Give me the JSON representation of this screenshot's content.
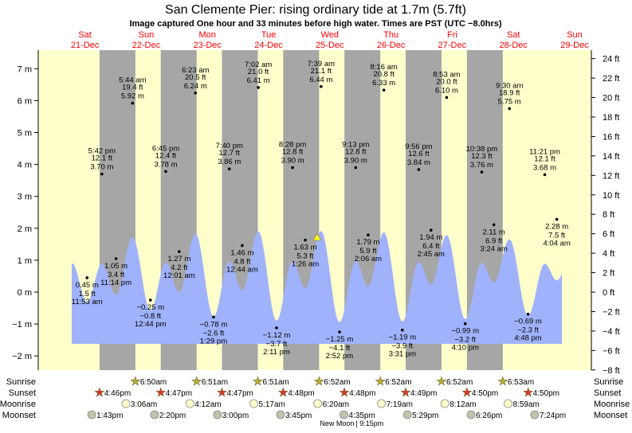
{
  "title": "San Clemente Pier: rising  ordinary tide at 1.7m (5.7ft)",
  "subtitle": "Image captured One hour and 33 minutes before high water. Times are PST (UTC −8.0hrs)",
  "colors": {
    "day_bg": "#ffffcc",
    "night_bg": "#a6a6a6",
    "water": "#9fb2fb",
    "day_label": "#ff0000",
    "sunrise": "#b5b03a",
    "sunset": "#d63a2a",
    "moonrise": "#ffffcc",
    "moonset": "#c3c2aa",
    "marker": "#ffff33"
  },
  "chart_data": {
    "type": "area",
    "title": "San Clemente Pier: rising  ordinary tide at 1.7m (5.7ft)",
    "ylabel_left": "m",
    "ylabel_right": "ft",
    "ylim_m": [
      -2,
      7
    ],
    "ylim_ft": [
      -8,
      24
    ],
    "yticks_m": [
      "7 m",
      "6 m",
      "5 m",
      "4 m",
      "3 m",
      "2 m",
      "1 m",
      "0 m",
      "−1 m",
      "−2 m"
    ],
    "yticks_m_values": [
      7,
      6,
      5,
      4,
      3,
      2,
      1,
      0,
      -1,
      -2
    ],
    "yticks_ft": [
      "24 ft",
      "22 ft",
      "20 ft",
      "18 ft",
      "16 ft",
      "14 ft",
      "12 ft",
      "10 ft",
      "8 ft",
      "6 ft",
      "4 ft",
      "2 ft",
      "0 ft",
      "−2 ft",
      "−4 ft",
      "−6 ft",
      "−8 ft"
    ],
    "yticks_ft_values": [
      24,
      22,
      20,
      18,
      16,
      14,
      12,
      10,
      8,
      6,
      4,
      2,
      0,
      -2,
      -4,
      -6,
      -8
    ],
    "days": [
      {
        "dow": "Sat",
        "date": "21-Dec"
      },
      {
        "dow": "Sun",
        "date": "22-Dec"
      },
      {
        "dow": "Mon",
        "date": "23-Dec"
      },
      {
        "dow": "Tue",
        "date": "24-Dec"
      },
      {
        "dow": "Wed",
        "date": "25-Dec"
      },
      {
        "dow": "Thu",
        "date": "26-Dec"
      },
      {
        "dow": "Fri",
        "date": "27-Dec"
      },
      {
        "dow": "Sat",
        "date": "28-Dec"
      },
      {
        "dow": "Sun",
        "date": "29-Dec"
      }
    ],
    "extremes": [
      {
        "date": "21-Dec",
        "time": "11:53 am",
        "m": "0.45 m",
        "ft": "1.5 ft",
        "value": 0.45,
        "type": "low"
      },
      {
        "date": "21-Dec",
        "time": "5:42 pm",
        "m": "3.70 m",
        "ft": "12.1 ft",
        "value": 3.7,
        "type": "high"
      },
      {
        "date": "21-Dec",
        "time": "11:14 pm",
        "m": "1.05 m",
        "ft": "3.4 ft",
        "value": 1.05,
        "type": "low"
      },
      {
        "date": "22-Dec",
        "time": "5:44 am",
        "m": "5.92 m",
        "ft": "19.4 ft",
        "value": 5.92,
        "type": "high"
      },
      {
        "date": "22-Dec",
        "time": "12:44 pm",
        "m": "−0.25 m",
        "ft": "−0.8 ft",
        "value": -0.25,
        "type": "low"
      },
      {
        "date": "22-Dec",
        "time": "6:45 pm",
        "m": "3.78 m",
        "ft": "12.4 ft",
        "value": 3.78,
        "type": "high"
      },
      {
        "date": "23-Dec",
        "time": "12:01 am",
        "m": "1.27 m",
        "ft": "4.2 ft",
        "value": 1.27,
        "type": "low"
      },
      {
        "date": "23-Dec",
        "time": "6:23 am",
        "m": "6.24 m",
        "ft": "20.5 ft",
        "value": 6.24,
        "type": "high"
      },
      {
        "date": "23-Dec",
        "time": "1:29 pm",
        "m": "−0.78 m",
        "ft": "−2.6 ft",
        "value": -0.78,
        "type": "low"
      },
      {
        "date": "23-Dec",
        "time": "7:40 pm",
        "m": "3.86 m",
        "ft": "12.7 ft",
        "value": 3.86,
        "type": "high"
      },
      {
        "date": "24-Dec",
        "time": "12:44 am",
        "m": "1.46 m",
        "ft": "4.8 ft",
        "value": 1.46,
        "type": "low"
      },
      {
        "date": "24-Dec",
        "time": "7:02 am",
        "m": "6.41 m",
        "ft": "21.0 ft",
        "value": 6.41,
        "type": "high"
      },
      {
        "date": "24-Dec",
        "time": "2:11 pm",
        "m": "−1.12 m",
        "ft": "−3.7 ft",
        "value": -1.12,
        "type": "low"
      },
      {
        "date": "24-Dec",
        "time": "8:28 pm",
        "m": "3.90 m",
        "ft": "12.8 ft",
        "value": 3.9,
        "type": "high"
      },
      {
        "date": "25-Dec",
        "time": "1:26 am",
        "m": "1.63 m",
        "ft": "5.3 ft",
        "value": 1.63,
        "type": "low"
      },
      {
        "date": "25-Dec",
        "time": "7:39 am",
        "m": "6.44 m",
        "ft": "21.1 ft",
        "value": 6.44,
        "type": "high"
      },
      {
        "date": "25-Dec",
        "time": "2:52 pm",
        "m": "−1.25 m",
        "ft": "−4.1 ft",
        "value": -1.25,
        "type": "low"
      },
      {
        "date": "25-Dec",
        "time": "9:13 pm",
        "m": "3.90 m",
        "ft": "12.8 ft",
        "value": 3.9,
        "type": "high"
      },
      {
        "date": "26-Dec",
        "time": "2:06 am",
        "m": "1.79 m",
        "ft": "5.9 ft",
        "value": 1.79,
        "type": "low"
      },
      {
        "date": "26-Dec",
        "time": "8:16 am",
        "m": "6.33 m",
        "ft": "20.8 ft",
        "value": 6.33,
        "type": "high"
      },
      {
        "date": "26-Dec",
        "time": "3:31 pm",
        "m": "−1.19 m",
        "ft": "−3.9 ft",
        "value": -1.19,
        "type": "low"
      },
      {
        "date": "26-Dec",
        "time": "9:56 pm",
        "m": "3.84 m",
        "ft": "12.6 ft",
        "value": 3.84,
        "type": "high"
      },
      {
        "date": "27-Dec",
        "time": "2:45 am",
        "m": "1.94 m",
        "ft": "6.4 ft",
        "value": 1.94,
        "type": "low"
      },
      {
        "date": "27-Dec",
        "time": "8:53 am",
        "m": "6.10 m",
        "ft": "20.0 ft",
        "value": 6.1,
        "type": "high"
      },
      {
        "date": "27-Dec",
        "time": "4:10 pm",
        "m": "−0.99 m",
        "ft": "−3.2 ft",
        "value": -0.99,
        "type": "low"
      },
      {
        "date": "27-Dec",
        "time": "10:38 pm",
        "m": "3.76 m",
        "ft": "12.3 ft",
        "value": 3.76,
        "type": "high"
      },
      {
        "date": "28-Dec",
        "time": "3:24 am",
        "m": "2.11 m",
        "ft": "6.9 ft",
        "value": 2.11,
        "type": "low"
      },
      {
        "date": "28-Dec",
        "time": "9:30 am",
        "m": "5.75 m",
        "ft": "18.9 ft",
        "value": 5.75,
        "type": "high"
      },
      {
        "date": "28-Dec",
        "time": "4:48 pm",
        "m": "−0.69 m",
        "ft": "−2.3 ft",
        "value": -0.69,
        "type": "low"
      },
      {
        "date": "28-Dec",
        "time": "11:21 pm",
        "m": "3.68 m",
        "ft": "12.1 ft",
        "value": 3.68,
        "type": "high"
      },
      {
        "date": "29-Dec",
        "time": "4:04 am",
        "m": "2.28 m",
        "ft": "7.5 ft",
        "value": 2.28,
        "type": "low"
      }
    ],
    "current": {
      "date": "25-Dec",
      "time": "6:06 am",
      "value": 1.7
    }
  },
  "rows": {
    "labels": {
      "sunrise": "Sunrise",
      "sunset": "Sunset",
      "moonrise": "Moonrise",
      "moonset": "Moonset"
    },
    "sunrise": [
      {
        "date": "22-Dec",
        "time": "6:50am"
      },
      {
        "date": "23-Dec",
        "time": "6:51am"
      },
      {
        "date": "24-Dec",
        "time": "6:51am"
      },
      {
        "date": "25-Dec",
        "time": "6:52am"
      },
      {
        "date": "26-Dec",
        "time": "6:52am"
      },
      {
        "date": "27-Dec",
        "time": "6:52am"
      },
      {
        "date": "28-Dec",
        "time": "6:53am"
      }
    ],
    "sunset": [
      {
        "date": "21-Dec",
        "time": "4:46pm"
      },
      {
        "date": "22-Dec",
        "time": "4:47pm"
      },
      {
        "date": "23-Dec",
        "time": "4:47pm"
      },
      {
        "date": "24-Dec",
        "time": "4:48pm"
      },
      {
        "date": "25-Dec",
        "time": "4:48pm"
      },
      {
        "date": "26-Dec",
        "time": "4:49pm"
      },
      {
        "date": "27-Dec",
        "time": "4:50pm"
      },
      {
        "date": "28-Dec",
        "time": "4:50pm"
      }
    ],
    "moonrise": [
      {
        "date": "22-Dec",
        "time": "3:06am"
      },
      {
        "date": "23-Dec",
        "time": "4:12am"
      },
      {
        "date": "24-Dec",
        "time": "5:17am"
      },
      {
        "date": "25-Dec",
        "time": "6:20am"
      },
      {
        "date": "26-Dec",
        "time": "7:19am"
      },
      {
        "date": "27-Dec",
        "time": "8:12am"
      },
      {
        "date": "28-Dec",
        "time": "8:59am"
      }
    ],
    "moonset": [
      {
        "date": "21-Dec",
        "time": "1:43pm"
      },
      {
        "date": "22-Dec",
        "time": "2:20pm"
      },
      {
        "date": "23-Dec",
        "time": "3:00pm"
      },
      {
        "date": "24-Dec",
        "time": "3:45pm"
      },
      {
        "date": "25-Dec",
        "time": "4:35pm"
      },
      {
        "date": "26-Dec",
        "time": "5:29pm"
      },
      {
        "date": "27-Dec",
        "time": "6:26pm"
      },
      {
        "date": "28-Dec",
        "time": "7:24pm"
      }
    ],
    "moon_phase": {
      "date": "25-Dec",
      "time": "9:15pm",
      "label": "New Moon",
      "time_label": "| 9:15pm"
    }
  }
}
